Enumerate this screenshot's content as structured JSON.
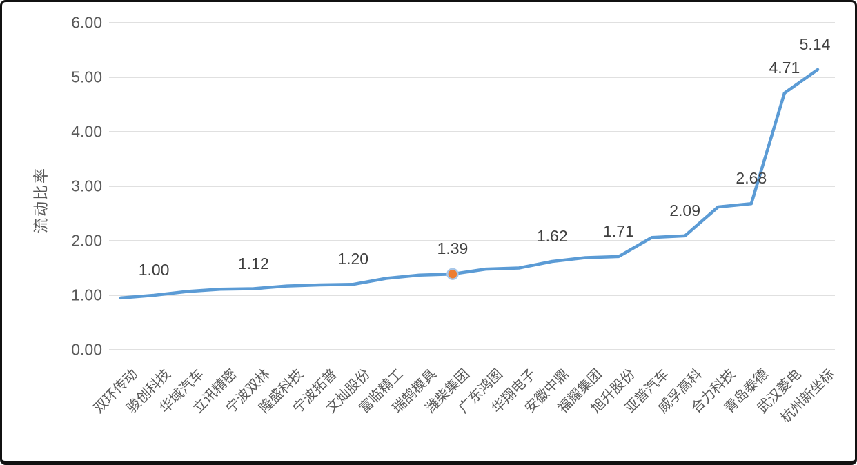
{
  "chart_data": {
    "type": "line",
    "title": "",
    "ylabel": "流动比率",
    "xlabel": "",
    "categories": [
      "双环传动",
      "骏创科技",
      "华域汽车",
      "立讯精密",
      "宁波双林",
      "隆盛科技",
      "宁波拓普",
      "文灿股份",
      "富临精工",
      "瑞鹄模具",
      "潍柴集团",
      "广东鸿图",
      "华翔电子",
      "安徽中鼎",
      "福耀集团",
      "旭升股份",
      "亚普汽车",
      "威孚高科",
      "合力科技",
      "青岛泰德",
      "武汉菱电",
      "杭州新坐标"
    ],
    "values": [
      0.95,
      1.0,
      1.07,
      1.11,
      1.12,
      1.17,
      1.19,
      1.2,
      1.31,
      1.37,
      1.39,
      1.48,
      1.5,
      1.62,
      1.69,
      1.71,
      2.06,
      2.09,
      2.62,
      2.68,
      4.71,
      5.14
    ],
    "point_labels": [
      "",
      "1.00",
      "",
      "",
      "1.12",
      "",
      "",
      "1.20",
      "",
      "",
      "1.39",
      "",
      "",
      "1.62",
      "",
      "1.71",
      "",
      "2.09",
      "",
      "2.68",
      "4.71",
      "5.14"
    ],
    "highlight_point": {
      "index": 10,
      "category": "潍柴集团",
      "value": 1.39
    },
    "yticks": [
      "0.00",
      "1.00",
      "2.00",
      "3.00",
      "4.00",
      "5.00",
      "6.00"
    ],
    "ylim": [
      0,
      6
    ],
    "grid": true,
    "legend": "none",
    "colors": {
      "line": "#5B9BD5",
      "marker_fill": "#ED7D31",
      "marker_ring": "#A7C6E8",
      "gridline": "#D6D6D6",
      "axis_text": "#595959",
      "data_label": "#404040"
    }
  }
}
